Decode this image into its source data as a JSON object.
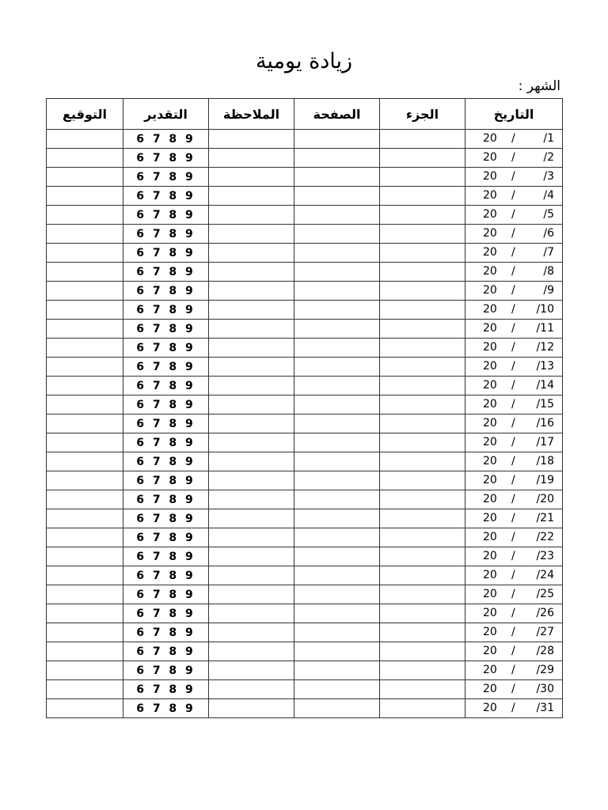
{
  "title": "زيادة يومية",
  "month_label": "الشهر :",
  "columns": {
    "signature": "التوقيع",
    "grade": "التقدير",
    "note": "الملاحظة",
    "page": "الصفحة",
    "part": "الجزء",
    "date": "التاريخ"
  },
  "grade_options": "6 7 8 9",
  "year_prefix": "20",
  "separator": "/",
  "days": [
    "/1",
    "/2",
    "/3",
    "/4",
    "/5",
    "/6",
    "/7",
    "/8",
    "/9",
    "/10",
    "/11",
    "/12",
    "/13",
    "/14",
    "/15",
    "/16",
    "/17",
    "/18",
    "/19",
    "/20",
    "/21",
    "/22",
    "/23",
    "/24",
    "/25",
    "/26",
    "/27",
    "/28",
    "/29",
    "/30",
    "/31"
  ]
}
